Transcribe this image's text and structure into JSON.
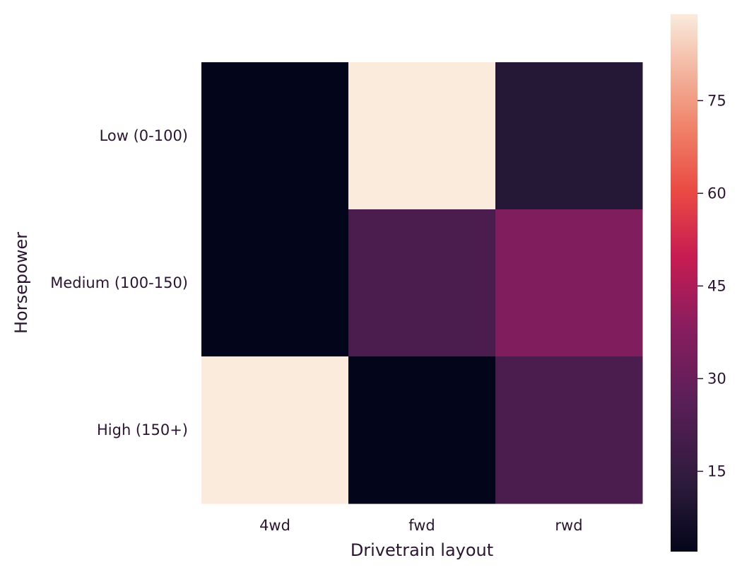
{
  "chart_data": {
    "type": "heatmap",
    "title": "",
    "xlabel": "Drivetrain layout",
    "ylabel": "Horsepower",
    "x_categories": [
      "4wd",
      "fwd",
      "rwd"
    ],
    "y_categories": [
      "Low (0-100)",
      "Medium (100-150)",
      "High (150+)"
    ],
    "values": [
      [
        2,
        89,
        11
      ],
      [
        2,
        22,
        36
      ],
      [
        89,
        2,
        22
      ]
    ],
    "colorbar": {
      "range": [
        2,
        89
      ],
      "ticks": [
        15,
        30,
        45,
        60,
        75
      ],
      "tick_labels": [
        "15",
        "30",
        "45",
        "60",
        "75"
      ],
      "colormap": "rocket"
    },
    "grid": false,
    "legend": "colorbar-right"
  }
}
